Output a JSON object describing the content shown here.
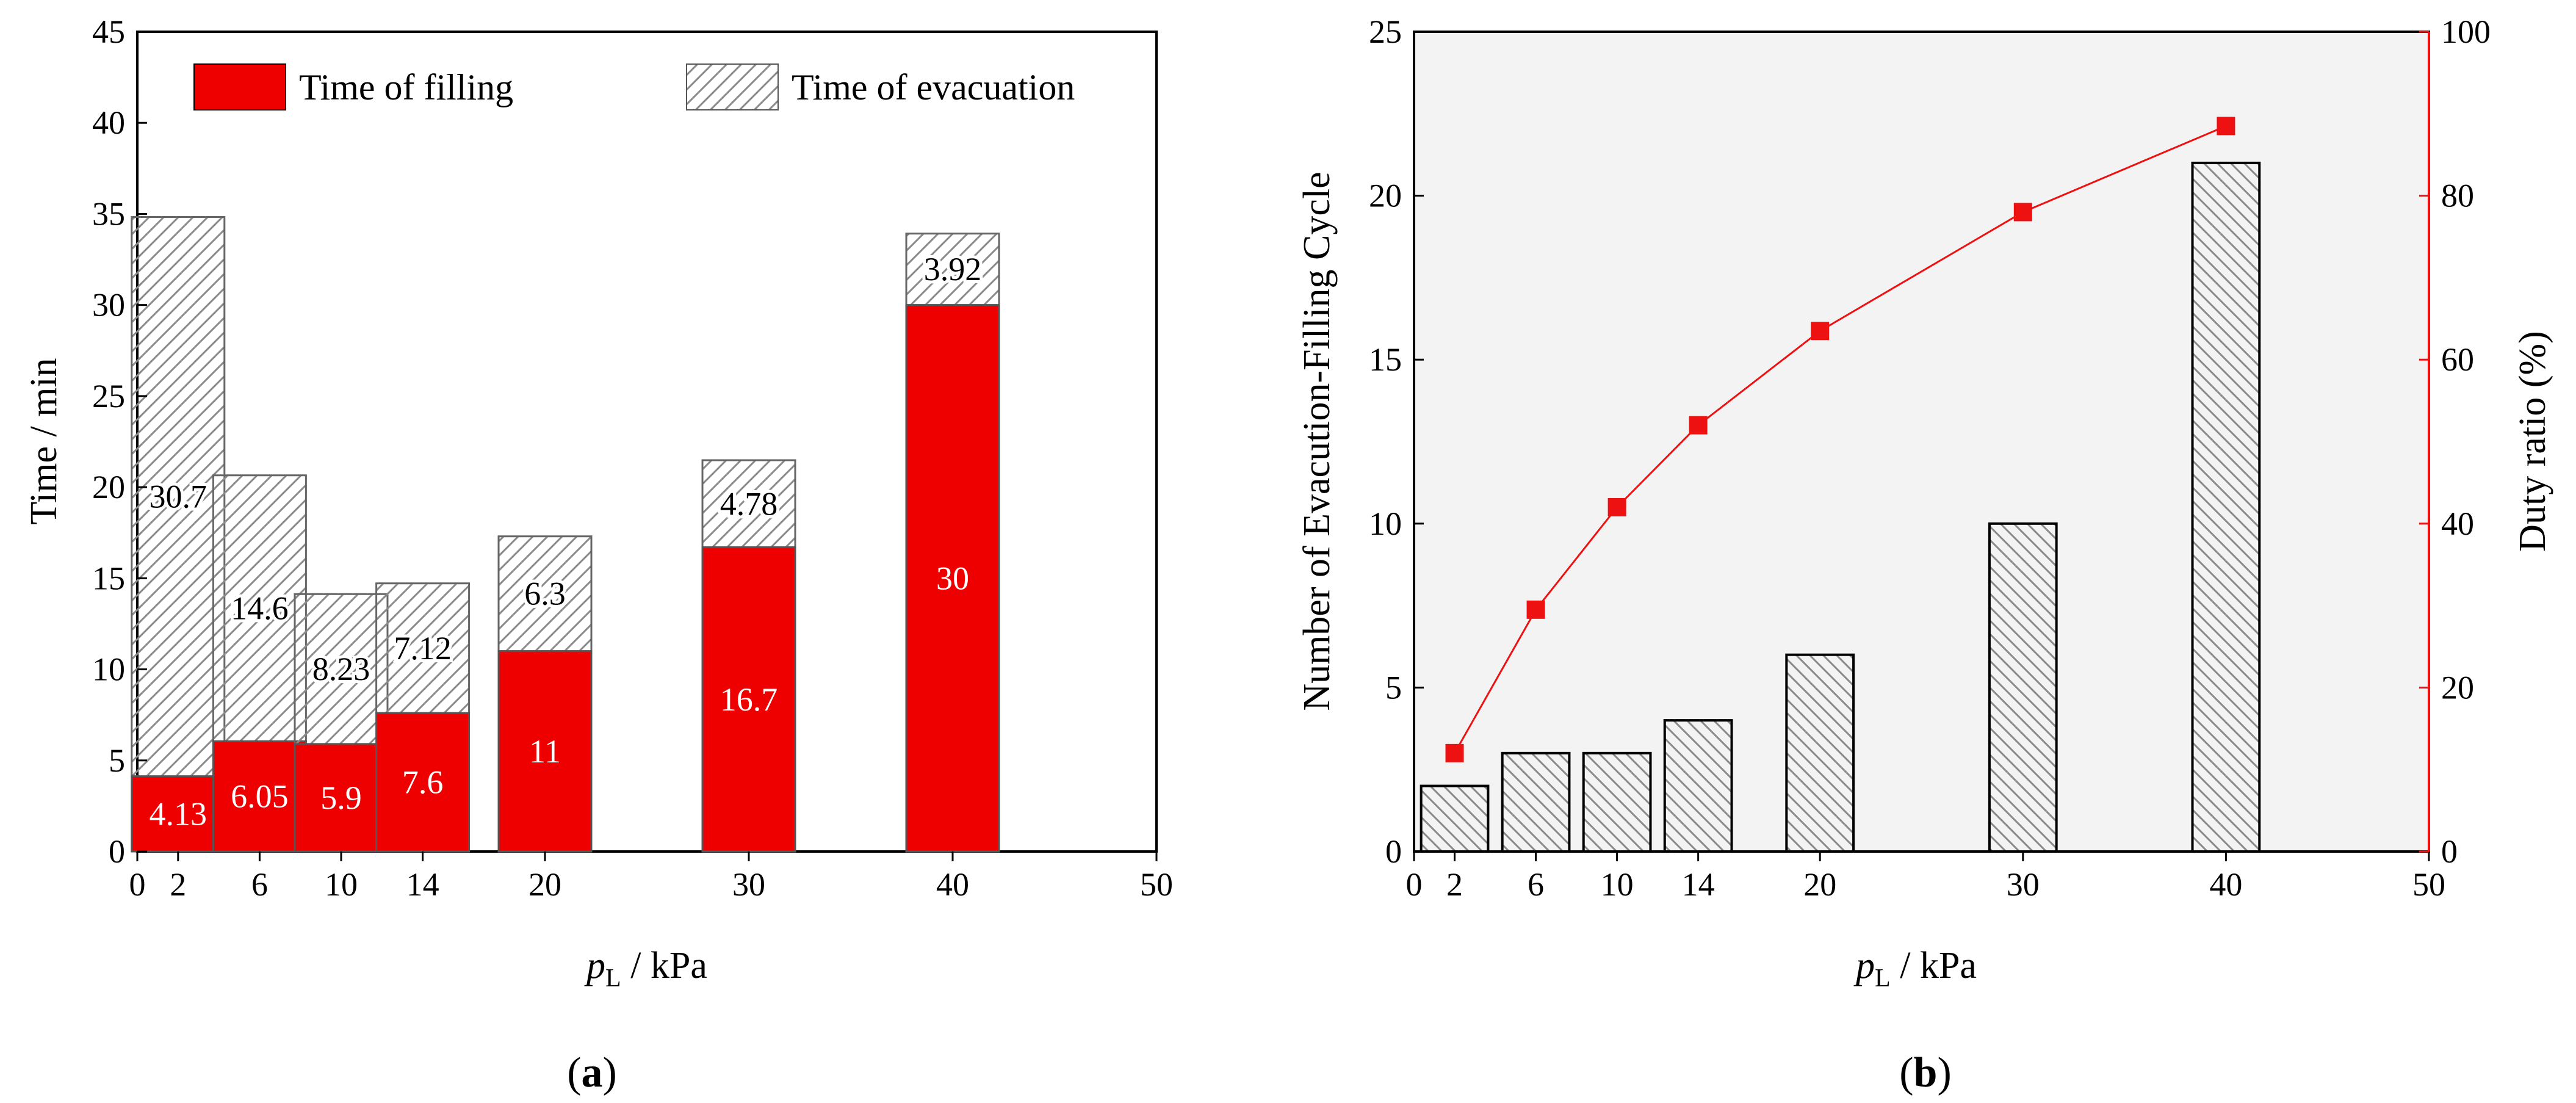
{
  "panels": [
    {
      "label_prefix": "(",
      "label": "a",
      "label_suffix": ")"
    },
    {
      "label_prefix": "(",
      "label": "b",
      "label_suffix": ")"
    }
  ],
  "chart_data": [
    {
      "type": "bar",
      "stacked": true,
      "x": [
        2,
        6,
        10,
        14,
        20,
        30,
        40
      ],
      "xlabel_symbol": "p",
      "xlabel_subscript": "L",
      "xlabel_unit": " / kPa",
      "xlim": [
        0,
        50
      ],
      "xticks": [
        0,
        2,
        6,
        10,
        14,
        20,
        30,
        40,
        50
      ],
      "ylabel": "Time / min",
      "ylim": [
        0,
        45
      ],
      "yticks": [
        0,
        5,
        10,
        15,
        20,
        25,
        30,
        35,
        40,
        45
      ],
      "legend_position": "top",
      "series": [
        {
          "name": "Time of filling",
          "values": [
            4.13,
            6.05,
            5.9,
            7.6,
            11,
            16.7,
            30
          ],
          "labels": [
            "4.13",
            "6.05",
            "5.9",
            "7.6",
            "11",
            "16.7",
            "30"
          ],
          "color": "#ee0000",
          "pattern": "solid"
        },
        {
          "name": "Time of evacuation",
          "values": [
            30.7,
            14.6,
            8.23,
            7.12,
            6.3,
            4.78,
            3.92
          ],
          "labels": [
            "30.7",
            "14.6",
            "8.23",
            "7.12",
            "6.3",
            "4.78",
            "3.92"
          ],
          "color": "#ffffff",
          "pattern": "hatch"
        }
      ]
    },
    {
      "type": "bar+line",
      "x": [
        2,
        6,
        10,
        14,
        20,
        30,
        40
      ],
      "xlabel_symbol": "p",
      "xlabel_subscript": "L",
      "xlabel_unit": " / kPa",
      "xlim": [
        0,
        50
      ],
      "xticks": [
        0,
        2,
        6,
        10,
        14,
        20,
        30,
        40,
        50
      ],
      "ylabel": "Number of Evacution-Filling Cycle",
      "ylim": [
        0,
        25
      ],
      "yticks": [
        0,
        5,
        10,
        15,
        20,
        25
      ],
      "y2label": "Duty ratio (%)",
      "y2lim": [
        0,
        100
      ],
      "y2ticks": [
        0,
        20,
        40,
        60,
        80,
        100
      ],
      "y2color": "#ee1111",
      "bars": {
        "values": [
          2,
          3,
          3,
          4,
          6,
          10,
          21
        ],
        "pattern": "hatch"
      },
      "line": {
        "values": [
          12,
          29.5,
          42,
          52,
          63.5,
          78,
          88.5
        ],
        "color": "#ee1111",
        "marker": "square"
      }
    }
  ]
}
